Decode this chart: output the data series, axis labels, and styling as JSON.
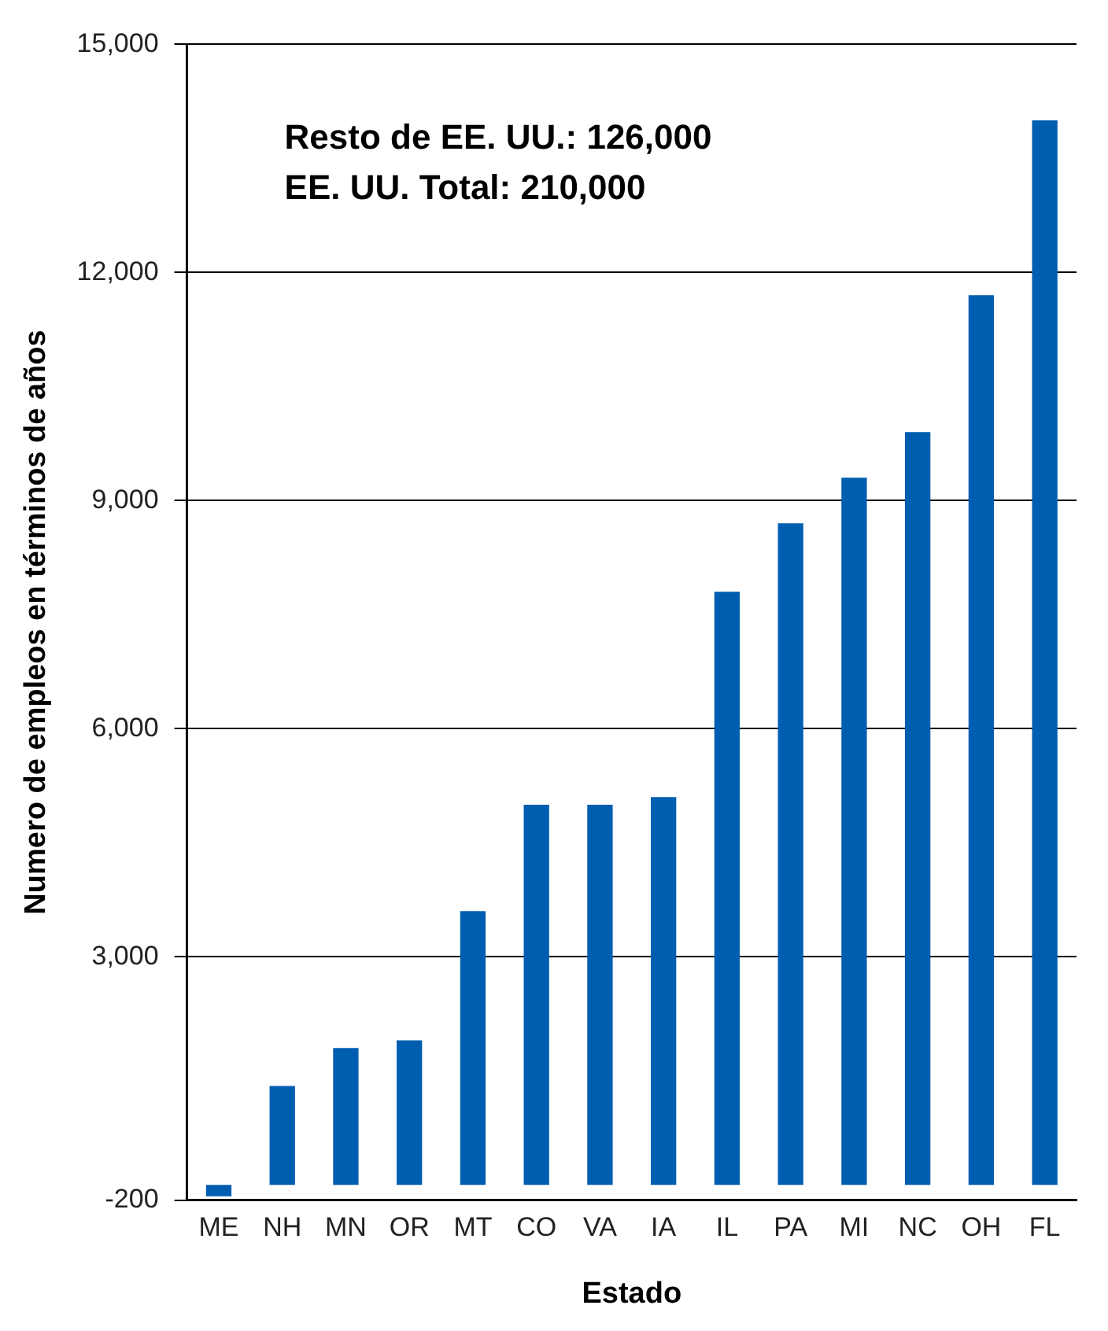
{
  "chart_data": {
    "type": "bar",
    "categories": [
      "ME",
      "NH",
      "MN",
      "OR",
      "MT",
      "CO",
      "VA",
      "IA",
      "IL",
      "PA",
      "MI",
      "NC",
      "OH",
      "FL"
    ],
    "values": [
      -150,
      1300,
      1800,
      1900,
      3600,
      5000,
      5000,
      5100,
      7800,
      8700,
      9300,
      9900,
      11700,
      14000
    ],
    "color": "#005eb0",
    "xlabel": "Estado",
    "ylabel": "Numero de empleos en términos de años",
    "ylim": [
      -200,
      15000
    ],
    "yticks": [
      {
        "value": -200,
        "label": "-200"
      },
      {
        "value": 3000,
        "label": "3,000"
      },
      {
        "value": 6000,
        "label": "6,000"
      },
      {
        "value": 9000,
        "label": "9,000"
      },
      {
        "value": 12000,
        "label": "12,000"
      },
      {
        "value": 15000,
        "label": "15,000"
      }
    ],
    "grid": "y",
    "annotations": [
      "Resto de EE. UU.: 126,000",
      "EE. UU. Total: 210,000"
    ]
  }
}
